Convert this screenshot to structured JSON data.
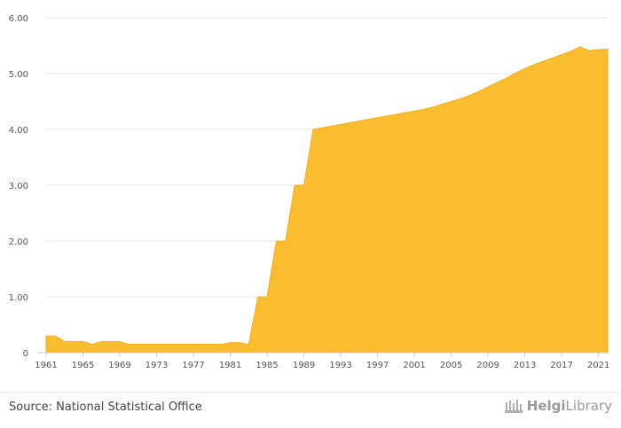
{
  "chart_data": {
    "type": "area",
    "title": "",
    "xlabel": "",
    "ylabel": "",
    "xlim": [
      1961,
      2022
    ],
    "ylim": [
      0,
      6
    ],
    "yticks": [
      "0",
      "1.00",
      "2.00",
      "3.00",
      "4.00",
      "5.00",
      "6.00"
    ],
    "xticks": [
      1961,
      1965,
      1969,
      1973,
      1977,
      1981,
      1985,
      1989,
      1993,
      1997,
      2001,
      2005,
      2009,
      2013,
      2017,
      2021
    ],
    "grid": true,
    "color": "#f9bd2f",
    "x": [
      1961,
      1962,
      1963,
      1964,
      1965,
      1966,
      1967,
      1968,
      1969,
      1970,
      1971,
      1972,
      1973,
      1974,
      1975,
      1976,
      1977,
      1978,
      1979,
      1980,
      1981,
      1982,
      1983,
      1984,
      1985,
      1986,
      1987,
      1988,
      1989,
      1990,
      1991,
      1992,
      1993,
      1994,
      1995,
      1996,
      1997,
      1998,
      1999,
      2000,
      2001,
      2002,
      2003,
      2004,
      2005,
      2006,
      2007,
      2008,
      2009,
      2010,
      2011,
      2012,
      2013,
      2014,
      2015,
      2016,
      2017,
      2018,
      2019,
      2020,
      2021,
      2022
    ],
    "values": [
      0.3,
      0.3,
      0.2,
      0.2,
      0.2,
      0.15,
      0.2,
      0.2,
      0.2,
      0.15,
      0.15,
      0.15,
      0.15,
      0.15,
      0.15,
      0.15,
      0.15,
      0.15,
      0.15,
      0.15,
      0.18,
      0.18,
      0.15,
      1.0,
      1.0,
      2.0,
      2.0,
      3.0,
      3.0,
      4.0,
      4.03,
      4.06,
      4.09,
      4.12,
      4.15,
      4.18,
      4.21,
      4.24,
      4.27,
      4.3,
      4.33,
      4.36,
      4.4,
      4.45,
      4.5,
      4.55,
      4.61,
      4.68,
      4.76,
      4.84,
      4.92,
      5.01,
      5.09,
      5.16,
      5.22,
      5.28,
      5.34,
      5.4,
      5.48,
      5.41,
      5.43,
      5.44
    ]
  },
  "footer": {
    "source": "Source: National Statistical Office",
    "brand_part1": "Helgi",
    "brand_part2": "Library"
  }
}
